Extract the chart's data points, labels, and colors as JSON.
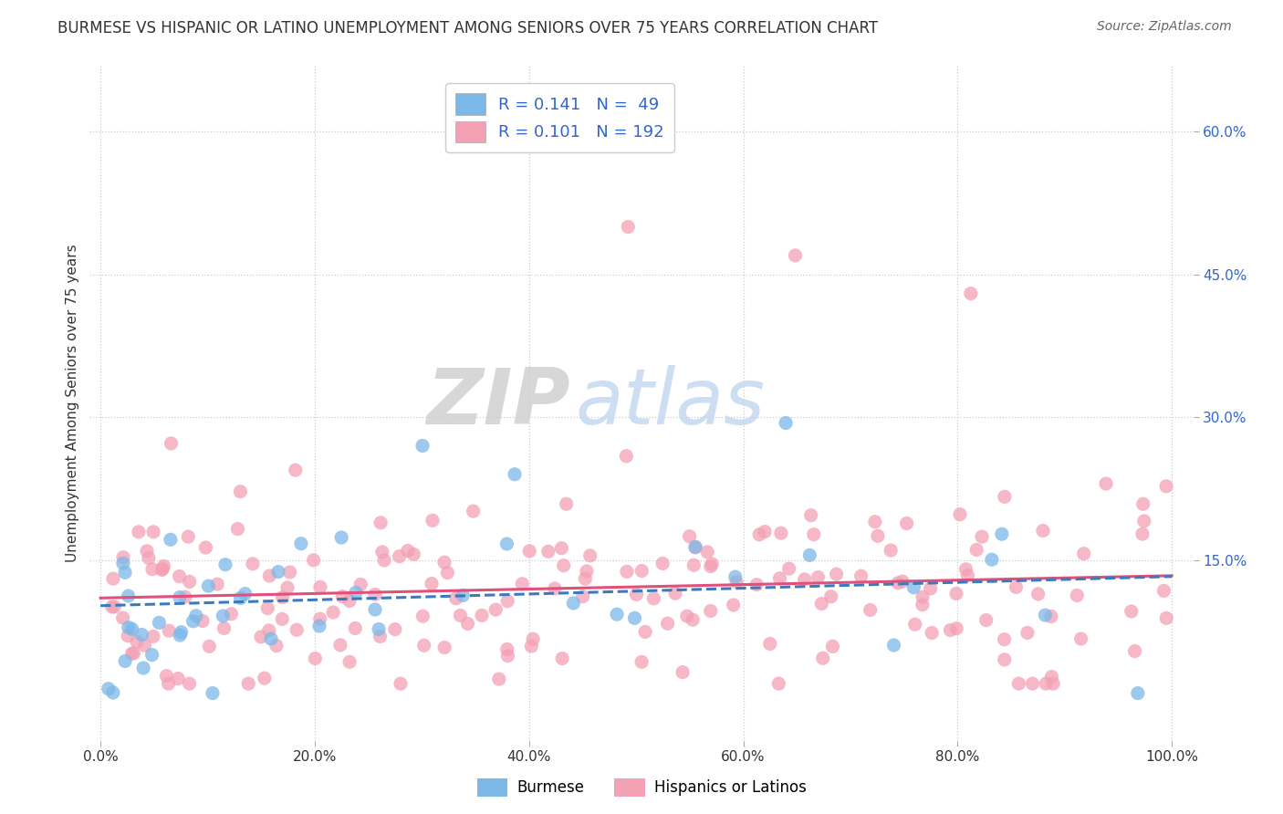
{
  "title": "BURMESE VS HISPANIC OR LATINO UNEMPLOYMENT AMONG SENIORS OVER 75 YEARS CORRELATION CHART",
  "source": "Source: ZipAtlas.com",
  "ylabel": "Unemployment Among Seniors over 75 years",
  "xlim": [
    -0.01,
    1.02
  ],
  "ylim": [
    -0.04,
    0.67
  ],
  "xtick_labels": [
    "0.0%",
    "20.0%",
    "40.0%",
    "60.0%",
    "80.0%",
    "100.0%"
  ],
  "xtick_values": [
    0,
    0.2,
    0.4,
    0.6,
    0.8,
    1.0
  ],
  "ytick_labels": [
    "15.0%",
    "30.0%",
    "45.0%",
    "60.0%"
  ],
  "ytick_values": [
    0.15,
    0.3,
    0.45,
    0.6
  ],
  "R_burmese": 0.141,
  "N_burmese": 49,
  "R_hispanic": 0.101,
  "N_hispanic": 192,
  "burmese_color": "#7bb8e8",
  "hispanic_color": "#f4a0b5",
  "burmese_trend_color": "#3a7bbf",
  "hispanic_trend_color": "#e0507a",
  "legend_label_burmese": "Burmese",
  "legend_label_hispanic": "Hispanics or Latinos",
  "background_color": "#ffffff",
  "grid_color": "#cccccc",
  "title_color": "#333333",
  "source_color": "#666666",
  "axis_label_color": "#333333",
  "tick_label_color": "#333333",
  "right_tick_color": "#3366cc"
}
